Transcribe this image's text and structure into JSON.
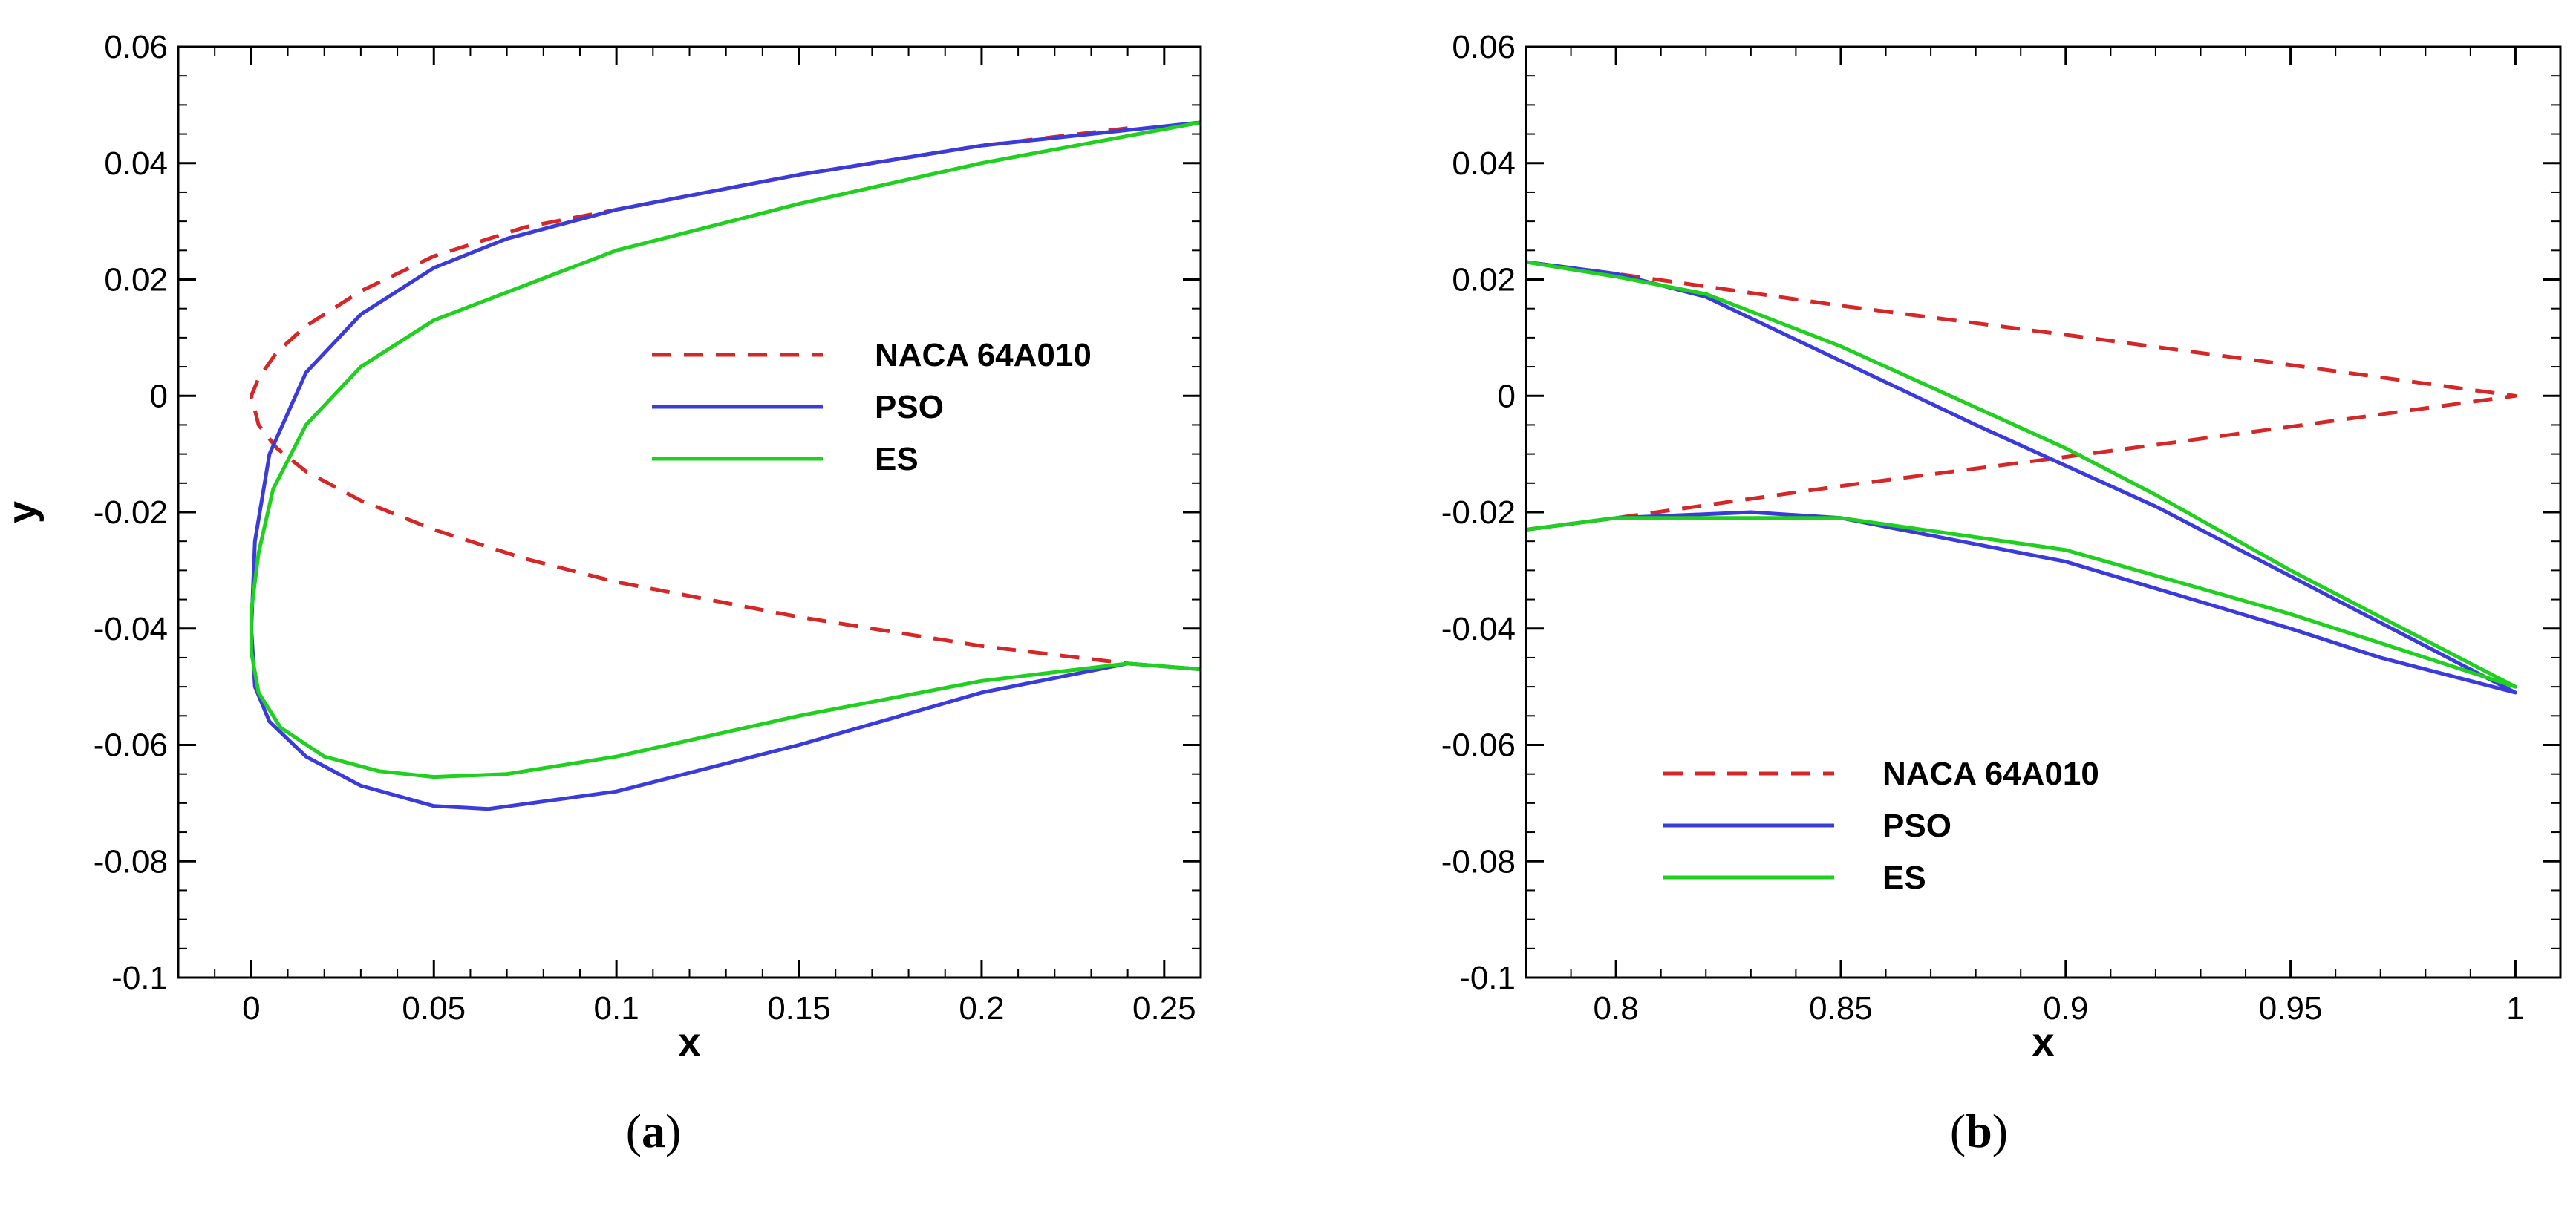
{
  "chart_data": [
    {
      "type": "line",
      "panel_label": "a",
      "xlabel": "x",
      "ylabel": "y",
      "xlim": [
        -0.02,
        0.26
      ],
      "ylim": [
        -0.1,
        0.06
      ],
      "xticks": [
        0,
        0.05,
        0.1,
        0.15,
        0.2,
        0.25
      ],
      "xtick_labels": [
        "0",
        "0.05",
        "0.1",
        "0.15",
        "0.2",
        "0.25"
      ],
      "xminor_step": 0.01,
      "yticks": [
        -0.1,
        -0.08,
        -0.06,
        -0.04,
        -0.02,
        0,
        0.02,
        0.04,
        0.06
      ],
      "ytick_labels": [
        "-0.1",
        "-0.08",
        "-0.06",
        "-0.04",
        "-0.02",
        "0",
        "0.02",
        "0.04",
        "0.06"
      ],
      "yminor_step": 0.005,
      "grid": false,
      "legend_position": "center-right",
      "series": [
        {
          "name": "NACA 64A010",
          "color": "#d62728",
          "dash": "dashed",
          "x": [
            0.24,
            0.2,
            0.15,
            0.1,
            0.075,
            0.05,
            0.03,
            0.015,
            0.007,
            0.002,
            0,
            0.002,
            0.007,
            0.015,
            0.03,
            0.05,
            0.075,
            0.1,
            0.15,
            0.2,
            0.24
          ],
          "y": [
            0.046,
            0.043,
            0.038,
            0.032,
            0.029,
            0.024,
            0.018,
            0.012,
            0.0075,
            0.003,
            0,
            -0.005,
            -0.009,
            -0.013,
            -0.018,
            -0.023,
            -0.028,
            -0.032,
            -0.038,
            -0.043,
            -0.046
          ]
        },
        {
          "name": "PSO",
          "color": "#3b3bdc",
          "dash": "solid",
          "x": [
            0.26,
            0.2,
            0.15,
            0.1,
            0.07,
            0.05,
            0.03,
            0.015,
            0.005,
            0.001,
            0,
            0.001,
            0.005,
            0.015,
            0.03,
            0.05,
            0.065,
            0.1,
            0.15,
            0.2,
            0.24,
            0.26
          ],
          "y": [
            0.047,
            0.043,
            0.038,
            0.032,
            0.027,
            0.022,
            0.014,
            0.004,
            -0.01,
            -0.025,
            -0.04,
            -0.05,
            -0.056,
            -0.062,
            -0.067,
            -0.0705,
            -0.071,
            -0.068,
            -0.06,
            -0.051,
            -0.046,
            -0.047
          ]
        },
        {
          "name": "ES",
          "color": "#1fd01f",
          "dash": "solid",
          "x": [
            0.26,
            0.2,
            0.15,
            0.1,
            0.05,
            0.03,
            0.015,
            0.006,
            0.002,
            0,
            0,
            0.002,
            0.008,
            0.02,
            0.035,
            0.05,
            0.07,
            0.1,
            0.15,
            0.2,
            0.24,
            0.26
          ],
          "y": [
            0.047,
            0.04,
            0.033,
            0.025,
            0.013,
            0.005,
            -0.005,
            -0.016,
            -0.027,
            -0.037,
            -0.044,
            -0.051,
            -0.057,
            -0.062,
            -0.0645,
            -0.0655,
            -0.065,
            -0.062,
            -0.055,
            -0.049,
            -0.046,
            -0.047
          ]
        }
      ]
    },
    {
      "type": "line",
      "panel_label": "b",
      "xlabel": "x",
      "ylabel": "",
      "xlim": [
        0.78,
        1.01
      ],
      "ylim": [
        -0.1,
        0.06
      ],
      "xticks": [
        0.8,
        0.85,
        0.9,
        0.95,
        1
      ],
      "xtick_labels": [
        "0.8",
        "0.85",
        "0.9",
        "0.95",
        "1"
      ],
      "xminor_step": 0.01,
      "yticks": [
        -0.1,
        -0.08,
        -0.06,
        -0.04,
        -0.02,
        0,
        0.02,
        0.04,
        0.06
      ],
      "ytick_labels": [
        "-0.1",
        "-0.08",
        "-0.06",
        "-0.04",
        "-0.02",
        "0",
        "0.02",
        "0.04",
        "0.06"
      ],
      "yminor_step": 0.005,
      "grid": false,
      "legend_position": "bottom-center",
      "series": [
        {
          "name": "NACA 64A010",
          "color": "#d62728",
          "dash": "dashed",
          "x": [
            0.78,
            0.8,
            0.85,
            0.9,
            0.95,
            1.0,
            0.95,
            0.9,
            0.85,
            0.8,
            0.78
          ],
          "y": [
            0.023,
            0.021,
            0.0155,
            0.0105,
            0.0053,
            0,
            -0.0053,
            -0.0105,
            -0.0155,
            -0.021,
            -0.023
          ]
        },
        {
          "name": "PSO",
          "color": "#3b3bdc",
          "dash": "solid",
          "x": [
            0.78,
            0.8,
            0.82,
            0.85,
            0.88,
            0.9,
            0.92,
            0.95,
            0.97,
            1.0,
            0.97,
            0.95,
            0.9,
            0.85,
            0.83,
            0.8,
            0.78
          ],
          "y": [
            0.023,
            0.021,
            0.017,
            0.006,
            -0.005,
            -0.012,
            -0.019,
            -0.031,
            -0.039,
            -0.051,
            -0.045,
            -0.04,
            -0.0285,
            -0.021,
            -0.02,
            -0.021,
            -0.023
          ]
        },
        {
          "name": "ES",
          "color": "#1fd01f",
          "dash": "solid",
          "x": [
            0.78,
            0.8,
            0.82,
            0.85,
            0.88,
            0.9,
            0.92,
            0.95,
            0.97,
            1.0,
            0.97,
            0.95,
            0.9,
            0.85,
            0.8,
            0.78
          ],
          "y": [
            0.023,
            0.0205,
            0.0175,
            0.0085,
            -0.002,
            -0.009,
            -0.017,
            -0.03,
            -0.038,
            -0.05,
            -0.0425,
            -0.0375,
            -0.0265,
            -0.021,
            -0.021,
            -0.023
          ]
        }
      ]
    }
  ]
}
